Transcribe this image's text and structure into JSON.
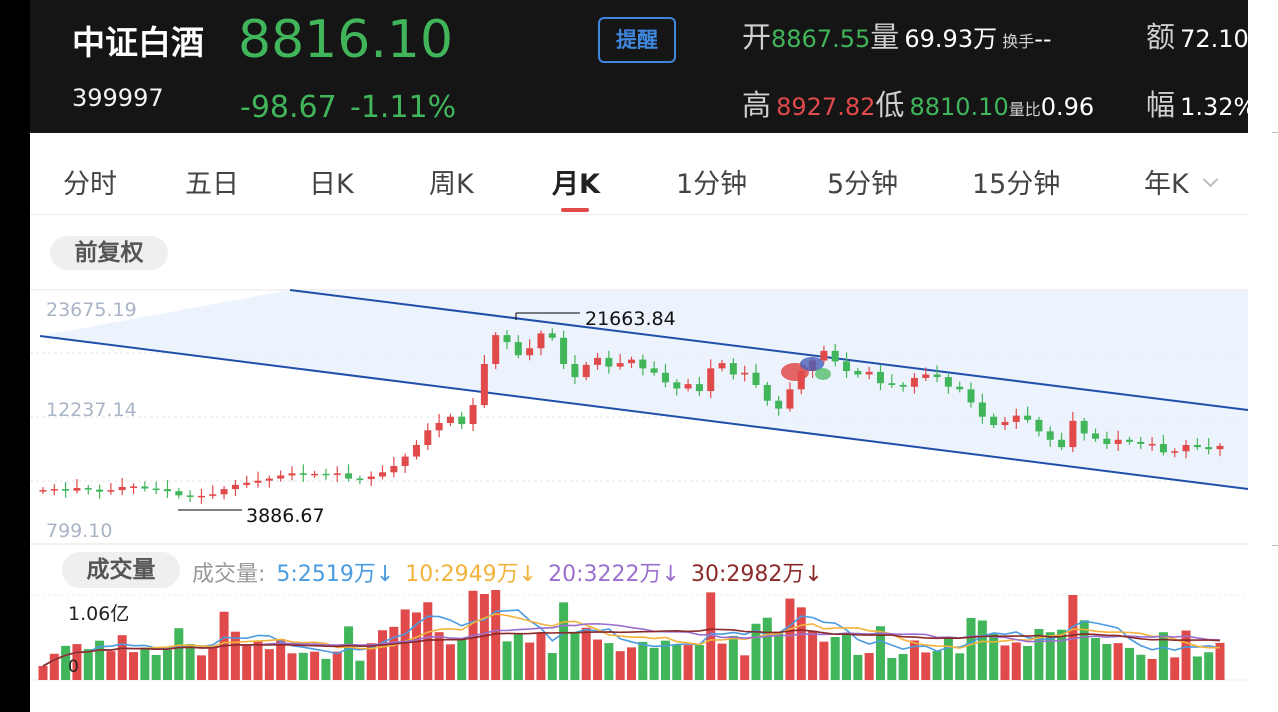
{
  "header": {
    "name": "中证白酒",
    "code": "399997",
    "price": "8816.10",
    "change": "-98.67",
    "change_pct": "-1.11%",
    "remind_label": "提醒",
    "open_label": "开",
    "open_value": "8867.55",
    "volume_label": "量",
    "volume_value": "69.93万",
    "turnover_label": "换手",
    "turnover_value": "--",
    "amount_label": "额",
    "amount_value": "72.10",
    "high_label": "高",
    "high_value": "8927.82",
    "low_label": "低",
    "low_value": "8810.10",
    "vol_ratio_label": "量比",
    "vol_ratio_value": "0.96",
    "amplitude_label": "幅",
    "amplitude_value": "1.32%"
  },
  "tabs": [
    "分时",
    "五日",
    "日K",
    "周K",
    "月K",
    "1分钟",
    "5分钟",
    "15分钟",
    "年K"
  ],
  "active_tab": "月K",
  "fuquan_label": "前复权",
  "volume_section": {
    "pill_label": "成交量",
    "prefix": "成交量:",
    "ma": [
      {
        "text": "5:2519万",
        "arrow": "↓",
        "color": "#4a9be0"
      },
      {
        "text": "10:2949万",
        "arrow": "↓",
        "color": "#f2b33d"
      },
      {
        "text": "20:3222万",
        "arrow": "↓",
        "color": "#9a70cf"
      },
      {
        "text": "30:2982万",
        "arrow": "↓",
        "color": "#8b2a2a"
      }
    ]
  },
  "colors": {
    "up": "#e04a4a",
    "down": "#41b55a",
    "channel": "#1f4fa8"
  },
  "chart_data": {
    "type": "candlestick",
    "y_labels": [
      "23675.19",
      "12237.14",
      "799.10"
    ],
    "annotations": {
      "high": "21663.84",
      "low": "3886.67"
    },
    "volume_top_label": "1.06亿",
    "volume_zero_label": "0",
    "close_series": [
      4600,
      4700,
      4550,
      4800,
      4650,
      4450,
      4600,
      4900,
      4950,
      4750,
      4700,
      4500,
      4100,
      3950,
      4050,
      4200,
      4700,
      5100,
      5300,
      5500,
      5700,
      6000,
      6200,
      6050,
      6150,
      6050,
      6200,
      5700,
      5650,
      5900,
      6300,
      6900,
      7800,
      8900,
      10300,
      11000,
      11600,
      10900,
      12800,
      17500,
      20800,
      20000,
      18500,
      19300,
      21000,
      20500,
      17500,
      16000,
      17400,
      18200,
      17200,
      17600,
      18000,
      17000,
      16500,
      15400,
      14700,
      15200,
      14400,
      17000,
      17600,
      16300,
      16500,
      15100,
      13300,
      12400,
      14600,
      16700,
      17900,
      19000,
      17800,
      16700,
      16300,
      16600,
      15300,
      15100,
      14900,
      15900,
      16300,
      16000,
      14900,
      14600,
      13100,
      11600,
      10800,
      11100,
      11700,
      11300,
      10200,
      9400,
      8700,
      11200,
      10000,
      9500,
      9000,
      9400,
      9200,
      9000,
      9000,
      8200,
      8300,
      8900,
      8700,
      8500,
      8816
    ]
  }
}
